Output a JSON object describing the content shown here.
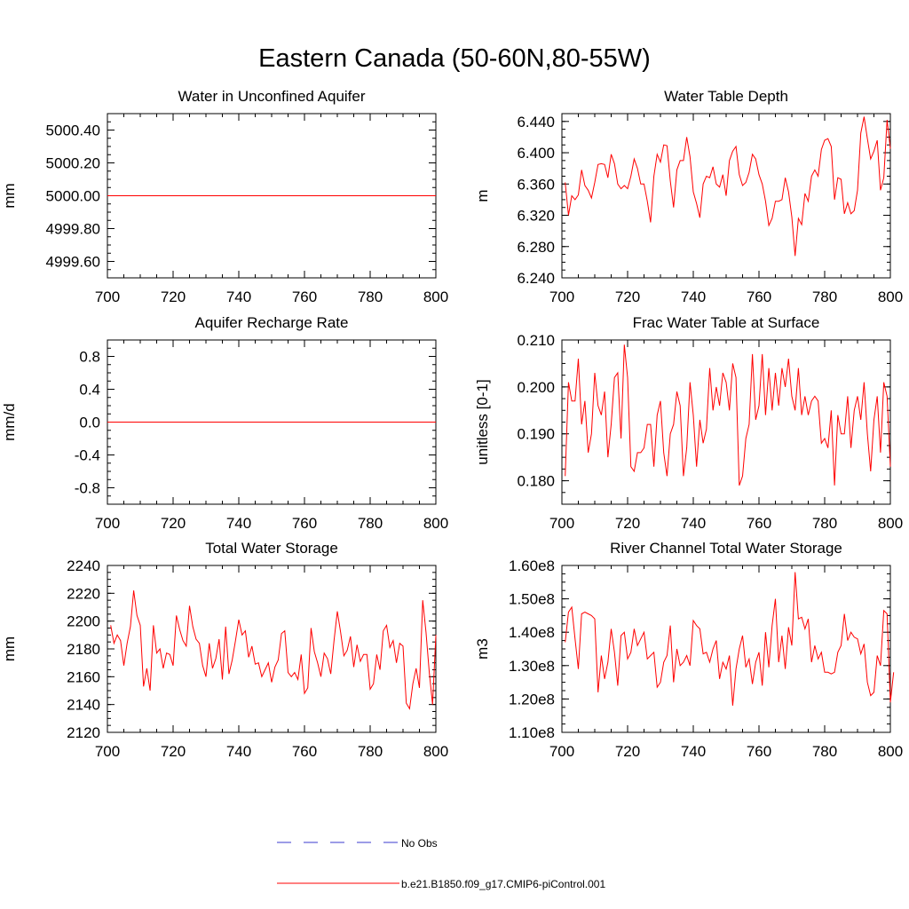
{
  "figure": {
    "title": "Eastern Canada (50-60N,80-55W)",
    "colors": {
      "model_line": "#ff0000",
      "obs_line": "#3a3acf",
      "axis": "#000000",
      "background": "#ffffff"
    }
  },
  "chart_data": [
    {
      "type": "line",
      "title": "Water in Unconfined Aquifer",
      "xlabel": "",
      "ylabel": "mm",
      "xlim": [
        700,
        800
      ],
      "ylim": [
        4999.5,
        5000.5
      ],
      "xticks": [
        700,
        720,
        740,
        760,
        780,
        800
      ],
      "xtick_labels": [
        "700",
        "720",
        "740",
        "760",
        "780",
        "800"
      ],
      "yticks": [
        4999.6,
        4999.8,
        5000.0,
        5000.2,
        5000.4
      ],
      "ytick_labels": [
        "4999.60",
        "4999.80",
        "5000.00",
        "5000.20",
        "5000.40"
      ],
      "minor_step": 0.05,
      "series": [
        {
          "name": "b.e21.B1850.f09_g17.CMIP6-piControl.001",
          "x_start": 700,
          "x_step": 1,
          "values": [
            5000,
            5000,
            5000,
            5000,
            5000,
            5000,
            5000,
            5000,
            5000,
            5000,
            5000,
            5000,
            5000,
            5000,
            5000,
            5000,
            5000,
            5000,
            5000,
            5000,
            5000,
            5000,
            5000,
            5000,
            5000,
            5000,
            5000,
            5000,
            5000,
            5000,
            5000,
            5000,
            5000,
            5000,
            5000,
            5000,
            5000,
            5000,
            5000,
            5000,
            5000,
            5000,
            5000,
            5000,
            5000,
            5000,
            5000,
            5000,
            5000,
            5000,
            5000,
            5000,
            5000,
            5000,
            5000,
            5000,
            5000,
            5000,
            5000,
            5000,
            5000,
            5000,
            5000,
            5000,
            5000,
            5000,
            5000,
            5000,
            5000,
            5000,
            5000,
            5000,
            5000,
            5000,
            5000,
            5000,
            5000,
            5000,
            5000,
            5000,
            5000,
            5000,
            5000,
            5000,
            5000,
            5000,
            5000,
            5000,
            5000,
            5000,
            5000,
            5000,
            5000,
            5000,
            5000,
            5000,
            5000,
            5000,
            5000,
            5000,
            5000
          ]
        }
      ]
    },
    {
      "type": "line",
      "title": "Water Table Depth",
      "xlabel": "",
      "ylabel": "m",
      "xlim": [
        700,
        800
      ],
      "ylim": [
        6.24,
        6.45
      ],
      "xticks": [
        700,
        720,
        740,
        760,
        780,
        800
      ],
      "xtick_labels": [
        "700",
        "720",
        "740",
        "760",
        "780",
        "800"
      ],
      "yticks": [
        6.24,
        6.28,
        6.32,
        6.36,
        6.4,
        6.44
      ],
      "ytick_labels": [
        "6.240",
        "6.280",
        "6.320",
        "6.360",
        "6.400",
        "6.440"
      ],
      "minor_step": 0.01,
      "series": [
        {
          "name": "b.e21.B1850.f09_g17.CMIP6-piControl.001",
          "x_start": 701,
          "x_step": 1,
          "values": [
            6.362,
            6.32,
            6.345,
            6.34,
            6.346,
            6.378,
            6.358,
            6.352,
            6.342,
            6.362,
            6.385,
            6.386,
            6.385,
            6.368,
            6.398,
            6.386,
            6.36,
            6.354,
            6.358,
            6.354,
            6.37,
            6.392,
            6.38,
            6.36,
            6.36,
            6.338,
            6.311,
            6.37,
            6.398,
            6.388,
            6.41,
            6.409,
            6.364,
            6.33,
            6.378,
            6.39,
            6.39,
            6.42,
            6.395,
            6.35,
            6.335,
            6.317,
            6.36,
            6.37,
            6.368,
            6.382,
            6.36,
            6.356,
            6.372,
            6.345,
            6.39,
            6.402,
            6.408,
            6.372,
            6.358,
            6.362,
            6.375,
            6.398,
            6.392,
            6.372,
            6.36,
            6.338,
            6.307,
            6.316,
            6.338,
            6.338,
            6.34,
            6.368,
            6.35,
            6.318,
            6.268,
            6.316,
            6.308,
            6.348,
            6.338,
            6.37,
            6.378,
            6.37,
            6.404,
            6.416,
            6.418,
            6.408,
            6.34,
            6.368,
            6.366,
            6.322,
            6.336,
            6.322,
            6.326,
            6.352,
            6.425,
            6.446,
            6.418,
            6.392,
            6.402,
            6.416,
            6.352,
            6.368,
            6.442,
            6.405
          ]
        }
      ]
    },
    {
      "type": "line",
      "title": "Aquifer Recharge Rate",
      "xlabel": "",
      "ylabel": "mm/d",
      "xlim": [
        700,
        800
      ],
      "ylim": [
        -1.0,
        1.0
      ],
      "xticks": [
        700,
        720,
        740,
        760,
        780,
        800
      ],
      "xtick_labels": [
        "700",
        "720",
        "740",
        "760",
        "780",
        "800"
      ],
      "yticks": [
        -0.8,
        -0.4,
        0.0,
        0.4,
        0.8
      ],
      "ytick_labels": [
        "-0.8",
        "-0.4",
        "0.0",
        "0.4",
        "0.8"
      ],
      "minor_step": 0.1,
      "series": [
        {
          "name": "b.e21.B1850.f09_g17.CMIP6-piControl.001",
          "x_start": 700,
          "x_step": 1,
          "values": [
            0,
            0,
            0,
            0,
            0,
            0,
            0,
            0,
            0,
            0,
            0,
            0,
            0,
            0,
            0,
            0,
            0,
            0,
            0,
            0,
            0,
            0,
            0,
            0,
            0,
            0,
            0,
            0,
            0,
            0,
            0,
            0,
            0,
            0,
            0,
            0,
            0,
            0,
            0,
            0,
            0,
            0,
            0,
            0,
            0,
            0,
            0,
            0,
            0,
            0,
            0,
            0,
            0,
            0,
            0,
            0,
            0,
            0,
            0,
            0,
            0,
            0,
            0,
            0,
            0,
            0,
            0,
            0,
            0,
            0,
            0,
            0,
            0,
            0,
            0,
            0,
            0,
            0,
            0,
            0,
            0,
            0,
            0,
            0,
            0,
            0,
            0,
            0,
            0,
            0,
            0,
            0,
            0,
            0,
            0,
            0,
            0,
            0,
            0,
            0,
            0
          ]
        }
      ]
    },
    {
      "type": "line",
      "title": "Frac Water Table at Surface",
      "xlabel": "",
      "ylabel": "unitless [0-1]",
      "xlim": [
        700,
        800
      ],
      "ylim": [
        0.175,
        0.21
      ],
      "xticks": [
        700,
        720,
        740,
        760,
        780,
        800
      ],
      "xtick_labels": [
        "700",
        "720",
        "740",
        "760",
        "780",
        "800"
      ],
      "yticks": [
        0.18,
        0.19,
        0.2,
        0.21
      ],
      "ytick_labels": [
        "0.180",
        "0.190",
        "0.200",
        "0.210"
      ],
      "minor_step": 0.0025,
      "series": [
        {
          "name": "b.e21.B1850.f09_g17.CMIP6-piControl.001",
          "x_start": 701,
          "x_step": 1,
          "values": [
            0.181,
            0.201,
            0.197,
            0.197,
            0.206,
            0.192,
            0.197,
            0.186,
            0.19,
            0.203,
            0.196,
            0.194,
            0.199,
            0.185,
            0.192,
            0.202,
            0.203,
            0.189,
            0.209,
            0.202,
            0.183,
            0.182,
            0.186,
            0.186,
            0.187,
            0.192,
            0.192,
            0.183,
            0.194,
            0.197,
            0.186,
            0.181,
            0.19,
            0.192,
            0.199,
            0.196,
            0.181,
            0.187,
            0.201,
            0.194,
            0.183,
            0.193,
            0.188,
            0.191,
            0.204,
            0.195,
            0.2,
            0.196,
            0.203,
            0.201,
            0.195,
            0.205,
            0.202,
            0.179,
            0.181,
            0.189,
            0.192,
            0.207,
            0.193,
            0.196,
            0.207,
            0.194,
            0.204,
            0.195,
            0.203,
            0.196,
            0.204,
            0.2,
            0.206,
            0.198,
            0.195,
            0.204,
            0.194,
            0.198,
            0.194,
            0.197,
            0.198,
            0.197,
            0.188,
            0.189,
            0.187,
            0.195,
            0.179,
            0.194,
            0.19,
            0.19,
            0.198,
            0.187,
            0.195,
            0.198,
            0.193,
            0.201,
            0.19,
            0.182,
            0.193,
            0.198,
            0.186,
            0.201,
            0.198,
            0.183
          ]
        }
      ]
    },
    {
      "type": "line",
      "title": "Total Water Storage",
      "xlabel": "",
      "ylabel": "mm",
      "xlim": [
        700,
        800
      ],
      "ylim": [
        2120,
        2240
      ],
      "xticks": [
        700,
        720,
        740,
        760,
        780,
        800
      ],
      "xtick_labels": [
        "700",
        "720",
        "740",
        "760",
        "780",
        "800"
      ],
      "yticks": [
        2120,
        2140,
        2160,
        2180,
        2200,
        2220,
        2240
      ],
      "ytick_labels": [
        "2120",
        "2140",
        "2160",
        "2180",
        "2200",
        "2220",
        "2240"
      ],
      "minor_step": 5,
      "series": [
        {
          "name": "b.e21.B1850.f09_g17.CMIP6-piControl.001",
          "x_start": 701,
          "x_step": 1,
          "values": [
            2197,
            2184,
            2190,
            2186,
            2168,
            2184,
            2196,
            2222,
            2204,
            2197,
            2153,
            2166,
            2150,
            2197,
            2177,
            2180,
            2166,
            2177,
            2176,
            2168,
            2204,
            2194,
            2186,
            2182,
            2211,
            2196,
            2187,
            2184,
            2168,
            2160,
            2184,
            2166,
            2173,
            2187,
            2158,
            2196,
            2162,
            2172,
            2186,
            2201,
            2190,
            2193,
            2174,
            2182,
            2169,
            2170,
            2160,
            2165,
            2170,
            2156,
            2167,
            2172,
            2191,
            2193,
            2163,
            2160,
            2163,
            2158,
            2176,
            2148,
            2152,
            2195,
            2178,
            2170,
            2160,
            2177,
            2173,
            2162,
            2186,
            2207,
            2192,
            2175,
            2179,
            2189,
            2167,
            2183,
            2171,
            2176,
            2176,
            2151,
            2155,
            2176,
            2165,
            2193,
            2197,
            2181,
            2186,
            2170,
            2184,
            2182,
            2141,
            2137,
            2155,
            2166,
            2152,
            2215,
            2192,
            2163,
            2140,
            2190
          ]
        }
      ]
    },
    {
      "type": "line",
      "title": "River Channel Total Water Storage",
      "xlabel": "",
      "ylabel": "m3",
      "xlim": [
        700,
        800
      ],
      "ylim": [
        110000000.0,
        160000000.0
      ],
      "xticks": [
        700,
        720,
        740,
        760,
        780,
        800
      ],
      "xtick_labels": [
        "700",
        "720",
        "740",
        "760",
        "780",
        "800"
      ],
      "yticks": [
        110000000.0,
        120000000.0,
        130000000.0,
        140000000.0,
        150000000.0,
        160000000.0
      ],
      "ytick_labels": [
        "1.10e8",
        "1.20e8",
        "1.30e8",
        "1.40e8",
        "1.50e8",
        "1.60e8"
      ],
      "minor_step": 2500000,
      "series": [
        {
          "name": "b.e21.B1850.f09_g17.CMIP6-piControl.001",
          "x_start": 701,
          "x_step": 1,
          "values": [
            137000000,
            146000000,
            147500000,
            138000000,
            129000000,
            145500000,
            146000000,
            145500000,
            145000000,
            144000000,
            122000000,
            133000000,
            126000000,
            131000000,
            141000000,
            134000000,
            124000000,
            139000000,
            140000000,
            132000000,
            134000000,
            141000000,
            136000000,
            138000000,
            140000000,
            132000000,
            133000000,
            134000000,
            123500000,
            125000000,
            131000000,
            133000000,
            142000000,
            125000000,
            135000000,
            130000000,
            131000000,
            133000000,
            130000000,
            143500000,
            142000000,
            141000000,
            133500000,
            134000000,
            131000000,
            135000000,
            137500000,
            126000000,
            131000000,
            129000000,
            133000000,
            118000000,
            129000000,
            135000000,
            139000000,
            129500000,
            132000000,
            124500000,
            131000000,
            134000000,
            124000000,
            140000000,
            129500000,
            142000000,
            150000000,
            131000000,
            139000000,
            129000000,
            141500000,
            136000000,
            158000000,
            144000000,
            144500000,
            141000000,
            144000000,
            131000000,
            136000000,
            132000000,
            134000000,
            128000000,
            128000000,
            127500000,
            128000000,
            134000000,
            136000000,
            145500000,
            137500000,
            140000000,
            138500000,
            138000000,
            133500000,
            136500000,
            125000000,
            121000000,
            122000000,
            133000000,
            130000000,
            146500000,
            145500000,
            119000000,
            128000000
          ]
        }
      ]
    }
  ],
  "legend": {
    "items": [
      {
        "label": "No Obs",
        "style": "dashed",
        "color": "#3a3acf"
      },
      {
        "label": "b.e21.B1850.f09_g17.CMIP6-piControl.001",
        "style": "solid",
        "color": "#ff0000"
      }
    ]
  }
}
